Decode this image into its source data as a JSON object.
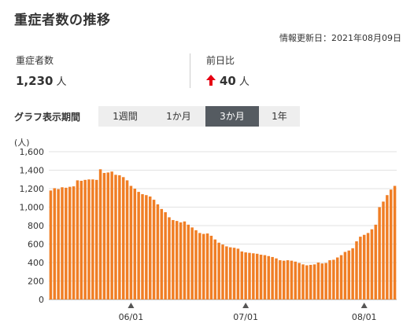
{
  "header": {
    "title": "重症者数の推移",
    "updated": "情報更新日：2021年08月09日"
  },
  "stats": {
    "severe": {
      "label": "重症者数",
      "value": "1,230",
      "unit": "人"
    },
    "change": {
      "label": "前日比",
      "value": "40",
      "unit": "人",
      "direction": "up",
      "arrow_color": "#e60012"
    }
  },
  "period": {
    "label": "グラフ表示期間",
    "tabs": [
      {
        "label": "1週間",
        "active": false
      },
      {
        "label": "1か月",
        "active": false
      },
      {
        "label": "3か月",
        "active": true
      },
      {
        "label": "1年",
        "active": false
      }
    ]
  },
  "chart_data": {
    "type": "bar",
    "ylabel": "(人)",
    "ylim": [
      0,
      1600
    ],
    "yticks": [
      0,
      200,
      400,
      600,
      800,
      1000,
      1200,
      1400,
      1600
    ],
    "yticklabels": [
      "0",
      "200",
      "400",
      "600",
      "800",
      "1,000",
      "1,200",
      "1,400",
      "1,600"
    ],
    "grid": true,
    "bar_color": "#f07e25",
    "x_start": "2021-05-11",
    "x_end": "2021-08-09",
    "xticks": [
      "2021-06-01",
      "2021-07-01",
      "2021-08-01"
    ],
    "xticklabels": [
      "06/01",
      "07/01",
      "08/01"
    ],
    "values": [
      1180,
      1205,
      1195,
      1215,
      1210,
      1220,
      1225,
      1290,
      1285,
      1295,
      1300,
      1300,
      1295,
      1410,
      1370,
      1375,
      1385,
      1350,
      1345,
      1325,
      1290,
      1230,
      1200,
      1165,
      1140,
      1130,
      1115,
      1080,
      1030,
      980,
      945,
      890,
      860,
      850,
      835,
      845,
      810,
      780,
      750,
      720,
      710,
      715,
      690,
      650,
      615,
      595,
      575,
      565,
      560,
      550,
      520,
      510,
      505,
      500,
      495,
      485,
      480,
      470,
      460,
      445,
      425,
      420,
      425,
      420,
      410,
      395,
      380,
      370,
      375,
      380,
      400,
      390,
      395,
      425,
      430,
      455,
      480,
      515,
      530,
      555,
      630,
      680,
      700,
      720,
      760,
      810,
      1000,
      1060,
      1130,
      1190,
      1230
    ]
  }
}
